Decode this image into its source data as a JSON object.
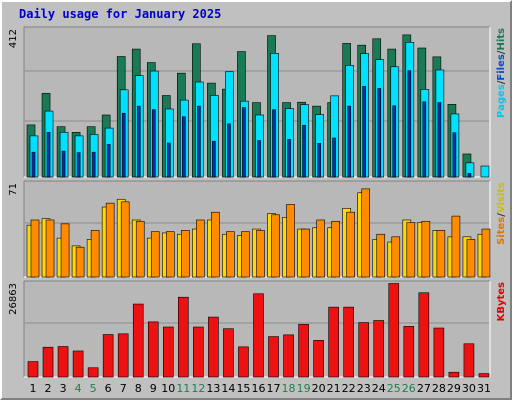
{
  "title": "Daily usage for January 2025",
  "colors": {
    "background": "#c0c0c0",
    "panel": "#b0b0b0",
    "hits": "#1a7a55",
    "files": "#00e0ff",
    "pages": "#0033aa",
    "visits": "#ffd800",
    "sites": "#ff8c00",
    "kbytes": "#ee1111",
    "title": "#0000cc",
    "weekend_label": "#208050"
  },
  "chart_data": [
    {
      "type": "bar",
      "panel": "top",
      "max_label": "412",
      "ylim": [
        0,
        412
      ],
      "categories": [
        "1",
        "2",
        "3",
        "4",
        "5",
        "6",
        "7",
        "8",
        "9",
        "10",
        "11",
        "12",
        "13",
        "14",
        "15",
        "16",
        "17",
        "18",
        "19",
        "20",
        "21",
        "22",
        "23",
        "24",
        "25",
        "26",
        "27",
        "28",
        "29",
        "30",
        "31"
      ],
      "legend": [
        {
          "label": "Pages",
          "color": "#00c8e8"
        },
        {
          "label": "/",
          "color": "#333333"
        },
        {
          "label": "Files",
          "color": "#0050c8"
        },
        {
          "label": "/",
          "color": "#333333"
        },
        {
          "label": "Hits",
          "color": "#1a7a55"
        }
      ],
      "series": [
        {
          "name": "Hits",
          "values": [
            147,
            236,
            142,
            126,
            142,
            175,
            340,
            361,
            323,
            230,
            293,
            376,
            265,
            248,
            354,
            210,
            399,
            210,
            211,
            200,
            210,
            377,
            372,
            390,
            361,
            401,
            364,
            339,
            205,
            65,
            0
          ]
        },
        {
          "name": "Files",
          "values": [
            116,
            186,
            126,
            116,
            120,
            138,
            246,
            286,
            299,
            192,
            217,
            268,
            230,
            297,
            214,
            175,
            349,
            193,
            204,
            176,
            229,
            315,
            348,
            331,
            311,
            380,
            247,
            302,
            178,
            40,
            31
          ]
        },
        {
          "name": "Pages",
          "values": [
            70,
            126,
            73,
            69,
            70,
            92,
            180,
            200,
            190,
            96,
            170,
            200,
            101,
            150,
            196,
            103,
            190,
            106,
            146,
            95,
            110,
            200,
            256,
            250,
            201,
            300,
            212,
            210,
            125,
            10,
            0
          ]
        }
      ]
    },
    {
      "type": "bar",
      "panel": "middle",
      "max_label": "71",
      "ylim": [
        0,
        71
      ],
      "categories": [
        "1",
        "2",
        "3",
        "4",
        "5",
        "6",
        "7",
        "8",
        "9",
        "10",
        "11",
        "12",
        "13",
        "14",
        "15",
        "16",
        "17",
        "18",
        "19",
        "20",
        "21",
        "22",
        "23",
        "24",
        "25",
        "26",
        "27",
        "28",
        "29",
        "30",
        "31"
      ],
      "legend": [
        {
          "label": "Sites",
          "color": "#e07800"
        },
        {
          "label": "/",
          "color": "#333333"
        },
        {
          "label": "Visits",
          "color": "#c8c000"
        }
      ],
      "series": [
        {
          "name": "Visits",
          "values": [
            40,
            45,
            30,
            24,
            29,
            54,
            60,
            44,
            30,
            34,
            33,
            37,
            44,
            33,
            32,
            37,
            49,
            46,
            37,
            38,
            38,
            53,
            65,
            29,
            27,
            44,
            42,
            36,
            31,
            31,
            33
          ]
        },
        {
          "name": "Sites",
          "values": [
            44,
            44,
            41,
            23,
            36,
            57,
            58,
            43,
            35,
            35,
            36,
            44,
            50,
            35,
            35,
            36,
            48,
            56,
            37,
            44,
            43,
            50,
            68,
            33,
            31,
            42,
            43,
            36,
            47,
            29,
            37
          ]
        }
      ]
    },
    {
      "type": "bar",
      "panel": "bottom",
      "max_label": "26863",
      "ylim": [
        0,
        26863
      ],
      "categories": [
        "1",
        "2",
        "3",
        "4",
        "5",
        "6",
        "7",
        "8",
        "9",
        "10",
        "11",
        "12",
        "13",
        "14",
        "15",
        "16",
        "17",
        "18",
        "19",
        "20",
        "21",
        "22",
        "23",
        "24",
        "25",
        "26",
        "27",
        "28",
        "29",
        "30",
        "31"
      ],
      "legend": [
        {
          "label": "KBytes",
          "color": "#e00000"
        }
      ],
      "series": [
        {
          "name": "KBytes",
          "values": [
            4500,
            8700,
            8900,
            7600,
            2700,
            12400,
            12600,
            21300,
            16100,
            14600,
            23300,
            14600,
            17500,
            14100,
            8800,
            24300,
            11800,
            12300,
            15400,
            10700,
            20400,
            20400,
            15900,
            16500,
            27300,
            14800,
            24600,
            14300,
            1400,
            9700,
            1000
          ]
        }
      ]
    }
  ],
  "x_labels": [
    {
      "text": "1",
      "weekend": false
    },
    {
      "text": "2",
      "weekend": false
    },
    {
      "text": "3",
      "weekend": false
    },
    {
      "text": "4",
      "weekend": true
    },
    {
      "text": "5",
      "weekend": true
    },
    {
      "text": "6",
      "weekend": false
    },
    {
      "text": "7",
      "weekend": false
    },
    {
      "text": "8",
      "weekend": false
    },
    {
      "text": "9",
      "weekend": false
    },
    {
      "text": "10",
      "weekend": false
    },
    {
      "text": "11",
      "weekend": true
    },
    {
      "text": "12",
      "weekend": true
    },
    {
      "text": "13",
      "weekend": false
    },
    {
      "text": "14",
      "weekend": false
    },
    {
      "text": "15",
      "weekend": false
    },
    {
      "text": "16",
      "weekend": false
    },
    {
      "text": "17",
      "weekend": false
    },
    {
      "text": "18",
      "weekend": true
    },
    {
      "text": "19",
      "weekend": true
    },
    {
      "text": "20",
      "weekend": false
    },
    {
      "text": "21",
      "weekend": false
    },
    {
      "text": "22",
      "weekend": false
    },
    {
      "text": "23",
      "weekend": false
    },
    {
      "text": "24",
      "weekend": false
    },
    {
      "text": "25",
      "weekend": true
    },
    {
      "text": "26",
      "weekend": true
    },
    {
      "text": "27",
      "weekend": false
    },
    {
      "text": "28",
      "weekend": false
    },
    {
      "text": "29",
      "weekend": false
    },
    {
      "text": "30",
      "weekend": false
    },
    {
      "text": "31",
      "weekend": false
    }
  ]
}
